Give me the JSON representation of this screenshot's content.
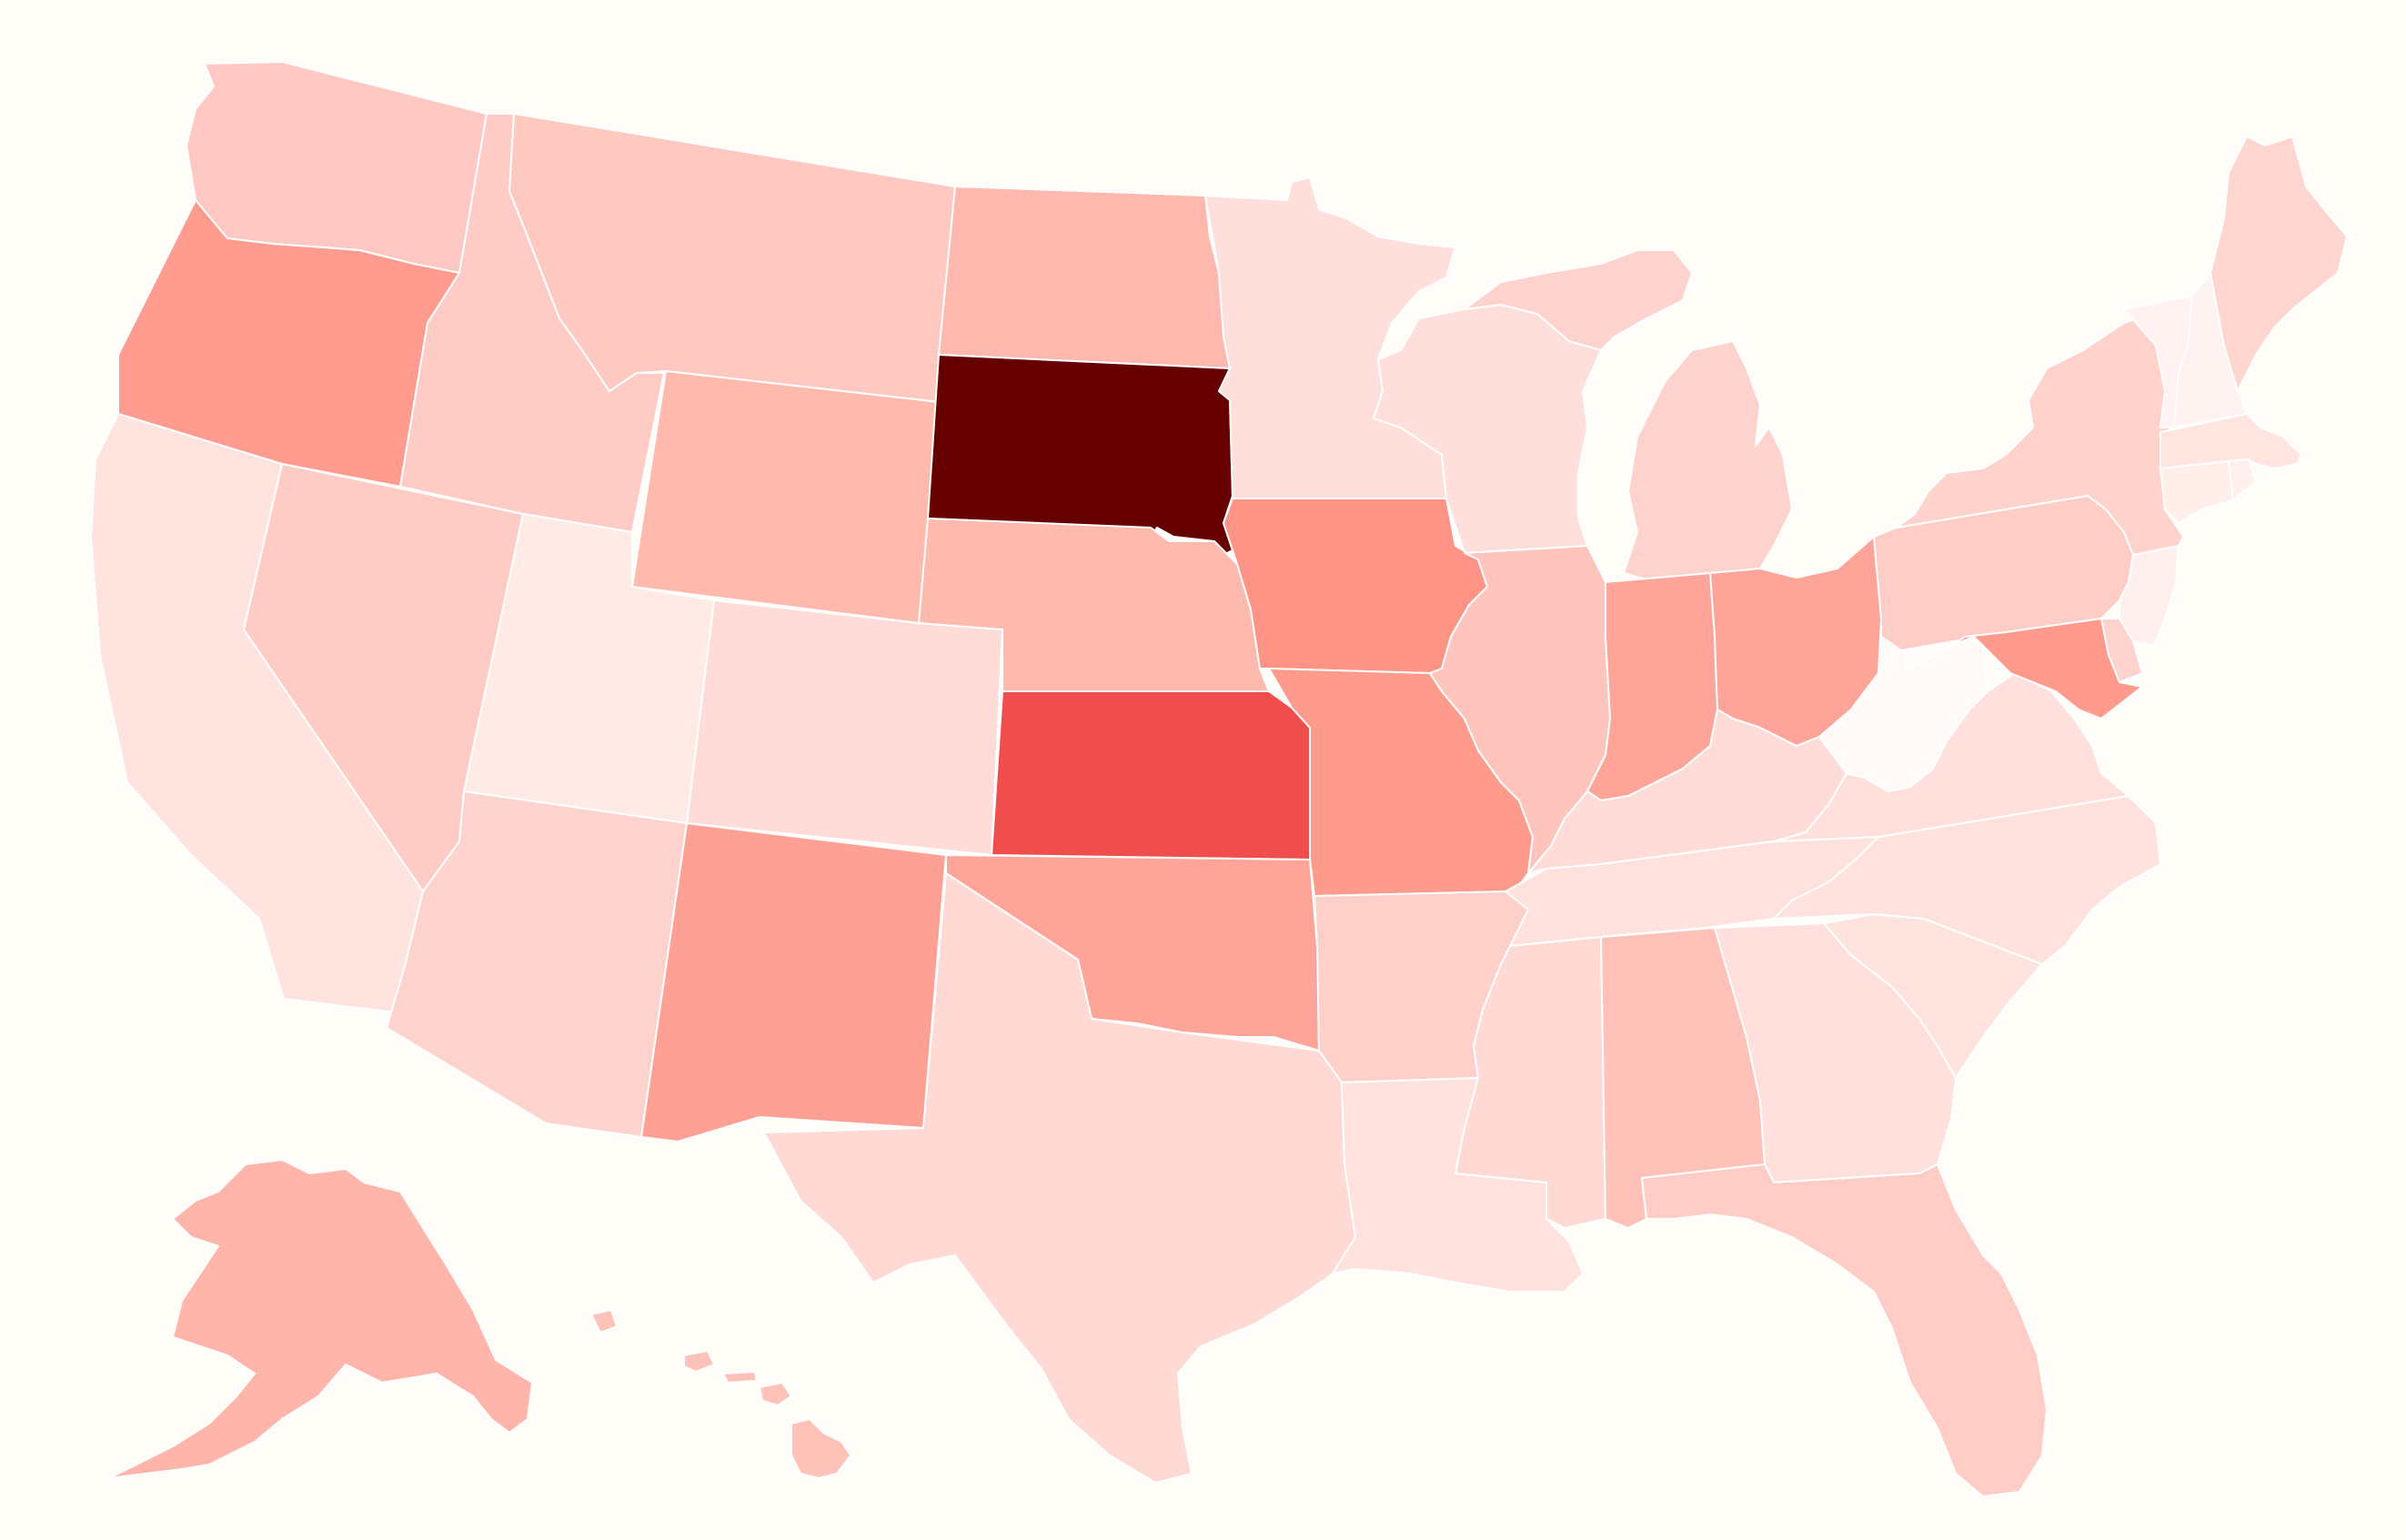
{
  "map": {
    "type": "choropleth",
    "region": "United States",
    "scale": {
      "low_color": "#fff5f3",
      "high_color": "#660000"
    },
    "background": "#fffdf8",
    "border_color": "#ffffff"
  },
  "states": [
    {
      "id": "WA",
      "color": "#ffc8c2"
    },
    {
      "id": "OR",
      "color": "#ff9b8f"
    },
    {
      "id": "CA",
      "color": "#ffe3df"
    },
    {
      "id": "NV",
      "color": "#ffccc5"
    },
    {
      "id": "ID",
      "color": "#ffccc5"
    },
    {
      "id": "MT",
      "color": "#ffc9c2"
    },
    {
      "id": "WY",
      "color": "#ffb9ad"
    },
    {
      "id": "UT",
      "color": "#ffeae6"
    },
    {
      "id": "AZ",
      "color": "#ffd3cd"
    },
    {
      "id": "CO",
      "color": "#ffdcd7"
    },
    {
      "id": "NM",
      "color": "#ffa094"
    },
    {
      "id": "ND",
      "color": "#ffb8ad"
    },
    {
      "id": "SD",
      "color": "#660000"
    },
    {
      "id": "NE",
      "color": "#ffbaae"
    },
    {
      "id": "KS",
      "color": "#f04e4c"
    },
    {
      "id": "OK",
      "color": "#ffa498"
    },
    {
      "id": "TX",
      "color": "#ffd9d3"
    },
    {
      "id": "MN",
      "color": "#ffdfdb"
    },
    {
      "id": "IA",
      "color": "#ff9385"
    },
    {
      "id": "MO",
      "color": "#ff9b8d"
    },
    {
      "id": "AR",
      "color": "#ffcfc9"
    },
    {
      "id": "LA",
      "color": "#ffe2de"
    },
    {
      "id": "WI",
      "color": "#ffdfdb"
    },
    {
      "id": "IL",
      "color": "#ffc4bc"
    },
    {
      "id": "MI",
      "color": "#ffd3cd"
    },
    {
      "id": "IN",
      "color": "#ffa498"
    },
    {
      "id": "OH",
      "color": "#ffa498"
    },
    {
      "id": "KY",
      "color": "#ffdcd7"
    },
    {
      "id": "TN",
      "color": "#ffe2de"
    },
    {
      "id": "MS",
      "color": "#ffdad4"
    },
    {
      "id": "AL",
      "color": "#ffc1b8"
    },
    {
      "id": "GA",
      "color": "#ffe0dc"
    },
    {
      "id": "FL",
      "color": "#ffccc6"
    },
    {
      "id": "SC",
      "color": "#ffe3df"
    },
    {
      "id": "NC",
      "color": "#ffe2de"
    },
    {
      "id": "VA",
      "color": "#ffe0dc"
    },
    {
      "id": "WV",
      "color": "#fff9f8"
    },
    {
      "id": "PA",
      "color": "#ffccc6"
    },
    {
      "id": "NY",
      "color": "#ffd2cc"
    },
    {
      "id": "VT",
      "color": "#fff2f0"
    },
    {
      "id": "NH",
      "color": "#fff3f1"
    },
    {
      "id": "ME",
      "color": "#ffd5cf"
    },
    {
      "id": "MA",
      "color": "#ffe4e0"
    },
    {
      "id": "CT",
      "color": "#ffeeea"
    },
    {
      "id": "RI",
      "color": "#fff0ed"
    },
    {
      "id": "NJ",
      "color": "#fff0ed"
    },
    {
      "id": "DE",
      "color": "#ffd3cd"
    },
    {
      "id": "MD",
      "color": "#ff9b8d"
    },
    {
      "id": "AK",
      "color": "#ffb5aa"
    },
    {
      "id": "HI",
      "color": "#ffc2b9"
    }
  ]
}
